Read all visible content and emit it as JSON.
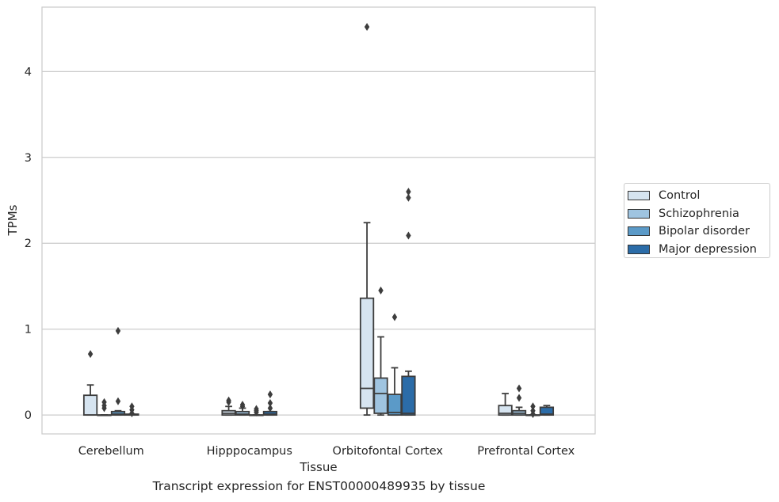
{
  "caption": "Transcript expression for ENST00000489935 by tissue",
  "chart_data": {
    "type": "box",
    "xlabel": "Tissue",
    "ylabel": "TPMs",
    "ylim": [
      -0.22,
      4.75
    ],
    "yticks": [
      0,
      1,
      2,
      3,
      4
    ],
    "grid": true,
    "legend_position": "right",
    "categories": [
      "Cerebellum",
      "Hipppocampus",
      "Orbitofontal Cortex",
      "Prefrontal Cortex"
    ],
    "series": [
      {
        "name": "Control",
        "color": "#d6e4f0",
        "boxes": [
          {
            "whislo": 0,
            "q1": 0,
            "med": 0,
            "q3": 0.23,
            "whishi": 0.35,
            "fliers": [
              0.71
            ]
          },
          {
            "whislo": 0,
            "q1": 0,
            "med": 0.02,
            "q3": 0.05,
            "whishi": 0.1,
            "fliers": [
              0.17,
              0.15
            ]
          },
          {
            "whislo": 0,
            "q1": 0.08,
            "med": 0.31,
            "q3": 1.36,
            "whishi": 2.24,
            "fliers": [
              4.52
            ]
          },
          {
            "whislo": 0,
            "q1": 0,
            "med": 0.02,
            "q3": 0.11,
            "whishi": 0.25,
            "fliers": []
          }
        ]
      },
      {
        "name": "Schizophrenia",
        "color": "#9fc4e0",
        "boxes": [
          {
            "whislo": 0,
            "q1": 0,
            "med": 0,
            "q3": 0,
            "whishi": 0,
            "fliers": [
              0.08,
              0.11,
              0.15
            ]
          },
          {
            "whislo": 0,
            "q1": 0,
            "med": 0.01,
            "q3": 0.04,
            "whishi": 0.08,
            "fliers": [
              0.1,
              0.12
            ]
          },
          {
            "whislo": 0,
            "q1": 0.02,
            "med": 0.25,
            "q3": 0.43,
            "whishi": 0.91,
            "fliers": [
              1.45
            ]
          },
          {
            "whislo": 0,
            "q1": 0,
            "med": 0.02,
            "q3": 0.05,
            "whishi": 0.09,
            "fliers": [
              0.2,
              0.31
            ]
          }
        ]
      },
      {
        "name": "Bipolar disorder",
        "color": "#5b9ac8",
        "boxes": [
          {
            "whislo": 0,
            "q1": 0,
            "med": 0.01,
            "q3": 0.04,
            "whishi": 0.05,
            "fliers": [
              0.98,
              0.16
            ]
          },
          {
            "whislo": 0,
            "q1": 0,
            "med": 0,
            "q3": 0,
            "whishi": 0,
            "fliers": [
              0.03,
              0.05,
              0.07
            ]
          },
          {
            "whislo": 0,
            "q1": 0,
            "med": 0.03,
            "q3": 0.24,
            "whishi": 0.55,
            "fliers": [
              1.14
            ]
          },
          {
            "whislo": 0,
            "q1": 0,
            "med": 0,
            "q3": 0,
            "whishi": 0,
            "fliers": [
              0.01,
              0.05,
              0.1
            ]
          }
        ]
      },
      {
        "name": "Major depression",
        "color": "#2b6ca8",
        "boxes": [
          {
            "whislo": 0,
            "q1": 0,
            "med": 0,
            "q3": 0.01,
            "whishi": 0.01,
            "fliers": [
              0.02,
              0.06,
              0.1
            ]
          },
          {
            "whislo": 0,
            "q1": 0,
            "med": 0.01,
            "q3": 0.04,
            "whishi": 0.04,
            "fliers": [
              0.08,
              0.14,
              0.24
            ]
          },
          {
            "whislo": 0,
            "q1": 0,
            "med": 0.02,
            "q3": 0.45,
            "whishi": 0.51,
            "fliers": [
              2.09,
              2.53,
              2.6
            ]
          },
          {
            "whislo": 0,
            "q1": 0,
            "med": 0.01,
            "q3": 0.09,
            "whishi": 0.11,
            "fliers": []
          }
        ]
      }
    ]
  }
}
